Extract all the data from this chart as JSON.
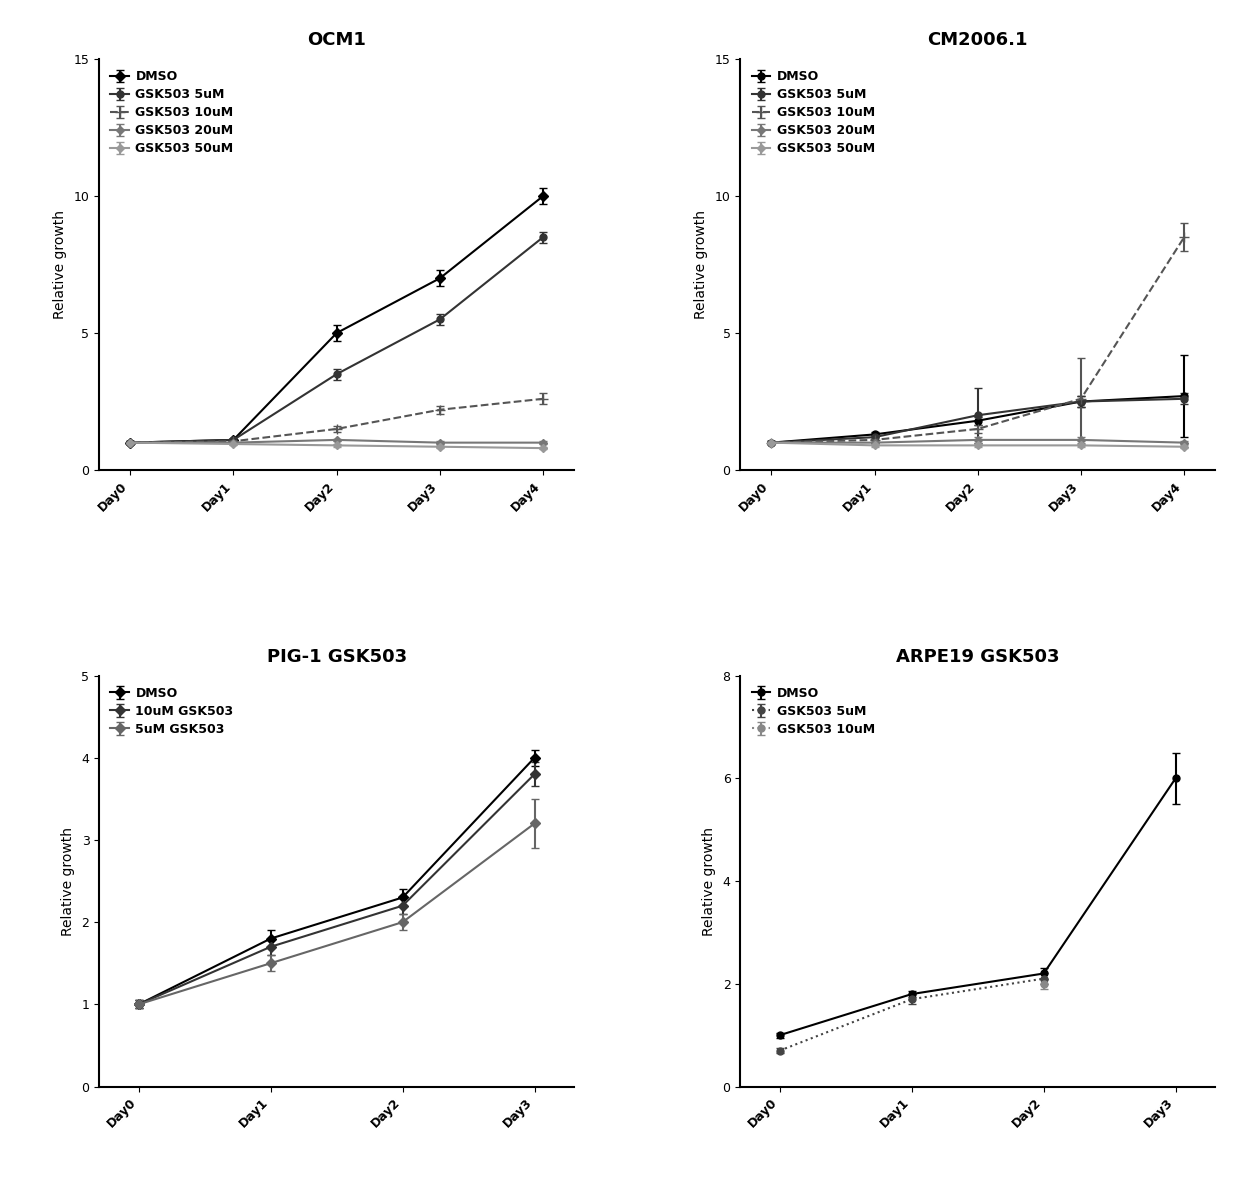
{
  "ocm1": {
    "title": "OCM1",
    "xlabel_days": [
      "Day0",
      "Day1",
      "Day2",
      "Day3",
      "Day4"
    ],
    "ylabel": "Relative growth",
    "ylim": [
      0,
      15
    ],
    "yticks": [
      0,
      5,
      10,
      15
    ],
    "series": [
      {
        "label": "DMSO",
        "x": [
          0,
          1,
          2,
          3,
          4
        ],
        "y": [
          1.0,
          1.1,
          5.0,
          7.0,
          10.0
        ],
        "yerr": [
          0.05,
          0.05,
          0.3,
          0.3,
          0.3
        ],
        "color": "#000000",
        "marker": "D",
        "markersize": 5,
        "linestyle": "-"
      },
      {
        "label": "GSK503 5uM",
        "x": [
          0,
          1,
          2,
          3,
          4
        ],
        "y": [
          1.0,
          1.1,
          3.5,
          5.5,
          8.5
        ],
        "yerr": [
          0.05,
          0.05,
          0.2,
          0.2,
          0.2
        ],
        "color": "#333333",
        "marker": "o",
        "markersize": 5,
        "linestyle": "-"
      },
      {
        "label": "GSK503 10uM",
        "x": [
          0,
          1,
          2,
          3,
          4
        ],
        "y": [
          1.0,
          1.05,
          1.5,
          2.2,
          2.6
        ],
        "yerr": [
          0.05,
          0.05,
          0.1,
          0.15,
          0.2
        ],
        "color": "#555555",
        "marker": "+",
        "markersize": 7,
        "linestyle": "--"
      },
      {
        "label": "GSK503 20uM",
        "x": [
          0,
          1,
          2,
          3,
          4
        ],
        "y": [
          1.0,
          1.0,
          1.1,
          1.0,
          1.0
        ],
        "yerr": [
          0.05,
          0.05,
          0.05,
          0.05,
          0.05
        ],
        "color": "#777777",
        "marker": "D",
        "markersize": 4,
        "linestyle": "-"
      },
      {
        "label": "GSK503 50uM",
        "x": [
          0,
          1,
          2,
          3,
          4
        ],
        "y": [
          1.0,
          0.95,
          0.9,
          0.85,
          0.8
        ],
        "yerr": [
          0.05,
          0.05,
          0.05,
          0.05,
          0.05
        ],
        "color": "#999999",
        "marker": "D",
        "markersize": 4,
        "linestyle": "-"
      }
    ]
  },
  "cm2006": {
    "title": "CM2006.1",
    "xlabel_days": [
      "Day0",
      "Day1",
      "Day2",
      "Day3",
      "Day4"
    ],
    "ylabel": "Relative growth",
    "ylim": [
      0,
      15
    ],
    "yticks": [
      0,
      5,
      10,
      15
    ],
    "series": [
      {
        "label": "DMSO",
        "x": [
          0,
          1,
          2,
          3,
          4
        ],
        "y": [
          1.0,
          1.3,
          1.8,
          2.5,
          2.7
        ],
        "yerr": [
          0.05,
          0.1,
          0.15,
          0.2,
          1.5
        ],
        "color": "#000000",
        "marker": "o",
        "markersize": 5,
        "linestyle": "-"
      },
      {
        "label": "GSK503 5uM",
        "x": [
          0,
          1,
          2,
          3,
          4
        ],
        "y": [
          1.0,
          1.2,
          2.0,
          2.5,
          2.6
        ],
        "yerr": [
          0.05,
          0.1,
          1.0,
          0.2,
          0.2
        ],
        "color": "#333333",
        "marker": "o",
        "markersize": 5,
        "linestyle": "-"
      },
      {
        "label": "GSK503 10uM",
        "x": [
          0,
          1,
          2,
          3,
          4
        ],
        "y": [
          1.0,
          1.1,
          1.5,
          2.6,
          8.5
        ],
        "yerr": [
          0.05,
          0.1,
          0.15,
          1.5,
          0.5
        ],
        "color": "#555555",
        "marker": "+",
        "markersize": 7,
        "linestyle": "--"
      },
      {
        "label": "GSK503 20uM",
        "x": [
          0,
          1,
          2,
          3,
          4
        ],
        "y": [
          1.0,
          1.0,
          1.1,
          1.1,
          1.0
        ],
        "yerr": [
          0.05,
          0.05,
          0.1,
          0.1,
          0.05
        ],
        "color": "#777777",
        "marker": "D",
        "markersize": 4,
        "linestyle": "-"
      },
      {
        "label": "GSK503 50uM",
        "x": [
          0,
          1,
          2,
          3,
          4
        ],
        "y": [
          1.0,
          0.9,
          0.9,
          0.9,
          0.85
        ],
        "yerr": [
          0.05,
          0.05,
          0.05,
          0.05,
          0.05
        ],
        "color": "#999999",
        "marker": "D",
        "markersize": 4,
        "linestyle": "-"
      }
    ]
  },
  "pig1": {
    "title": "PIG-1 GSK503",
    "xlabel_days": [
      "Day0",
      "Day1",
      "Day2",
      "Day3"
    ],
    "ylabel": "Relative growth",
    "ylim": [
      0,
      5
    ],
    "yticks": [
      0,
      1,
      2,
      3,
      4,
      5
    ],
    "series": [
      {
        "label": "DMSO",
        "x": [
          0,
          1,
          2,
          3
        ],
        "y": [
          1.0,
          1.8,
          2.3,
          4.0
        ],
        "yerr": [
          0.05,
          0.1,
          0.1,
          0.1
        ],
        "color": "#000000",
        "marker": "D",
        "markersize": 5,
        "linestyle": "-"
      },
      {
        "label": "10uM GSK503",
        "x": [
          0,
          1,
          2,
          3
        ],
        "y": [
          1.0,
          1.7,
          2.2,
          3.8
        ],
        "yerr": [
          0.05,
          0.1,
          0.1,
          0.15
        ],
        "color": "#333333",
        "marker": "D",
        "markersize": 5,
        "linestyle": "-"
      },
      {
        "label": "5uM GSK503",
        "x": [
          0,
          1,
          2,
          3
        ],
        "y": [
          1.0,
          1.5,
          2.0,
          3.2
        ],
        "yerr": [
          0.05,
          0.1,
          0.1,
          0.3
        ],
        "color": "#666666",
        "marker": "D",
        "markersize": 5,
        "linestyle": "-"
      }
    ]
  },
  "arpe19": {
    "title": "ARPE19 GSK503",
    "xlabel_days": [
      "Day0",
      "Day1",
      "Day2",
      "Day3"
    ],
    "ylabel": "Relative growth",
    "ylim": [
      0,
      8
    ],
    "yticks": [
      0,
      2,
      4,
      6,
      8
    ],
    "series": [
      {
        "label": "DMSO",
        "x": [
          0,
          1,
          2,
          3
        ],
        "y": [
          1.0,
          1.8,
          2.2,
          6.0
        ],
        "yerr": [
          0.05,
          0.05,
          0.1,
          0.5
        ],
        "color": "#000000",
        "marker": "o",
        "markersize": 5,
        "linestyle": "-"
      },
      {
        "label": "GSK503 5uM",
        "x": [
          0,
          1,
          2
        ],
        "y": [
          0.7,
          1.7,
          2.1
        ],
        "yerr": [
          0.05,
          0.1,
          0.1
        ],
        "color": "#444444",
        "marker": "o",
        "markersize": 5,
        "linestyle": ":"
      },
      {
        "label": "GSK503 10uM",
        "x": [
          2
        ],
        "y": [
          2.0
        ],
        "yerr": [
          0.1
        ],
        "color": "#888888",
        "marker": "o",
        "markersize": 5,
        "linestyle": ":"
      }
    ]
  },
  "font_family": "DejaVu Sans",
  "title_fontsize": 13,
  "label_fontsize": 10,
  "tick_fontsize": 9,
  "legend_fontsize": 9,
  "background_color": "#ffffff"
}
